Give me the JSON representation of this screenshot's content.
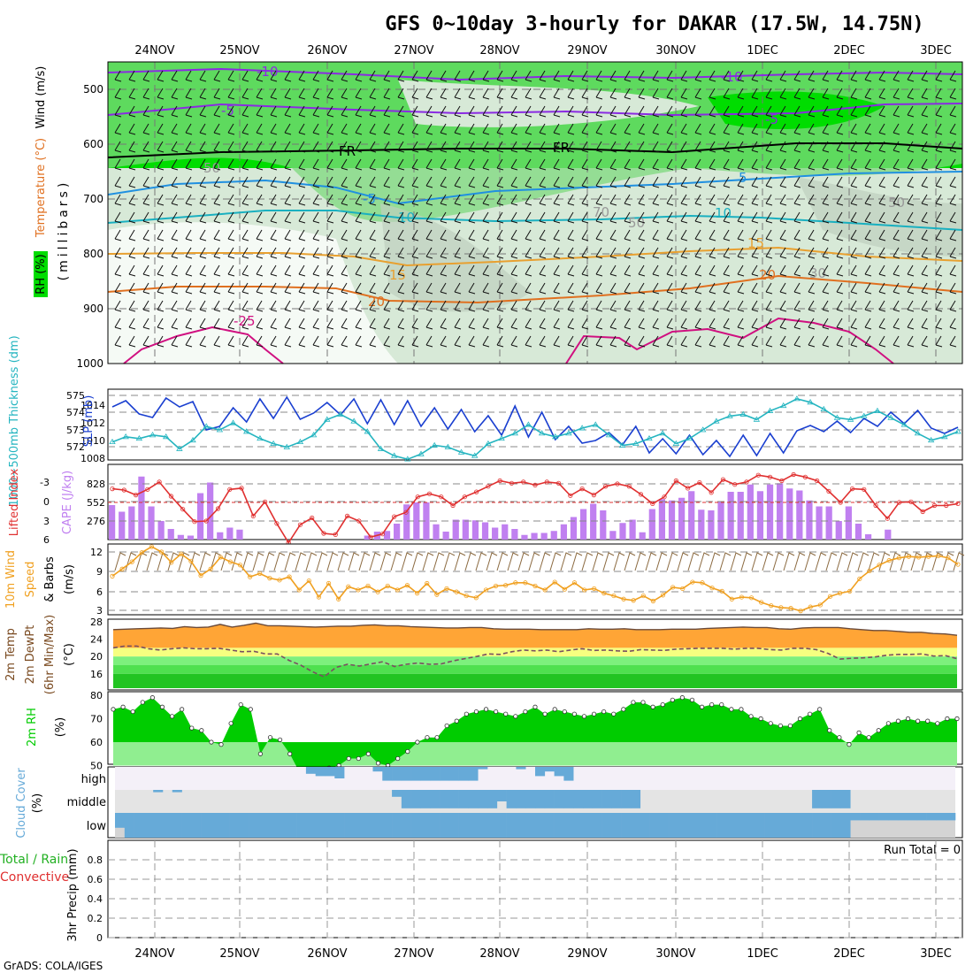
{
  "title": "GFS 0~10day 3-hourly for DAKAR (17.5W, 14.75N)",
  "credit": "GrADS: COLA/IGES",
  "dates": [
    "24NOV",
    "25NOV",
    "26NOV",
    "27NOV",
    "28NOV",
    "29NOV",
    "30NOV",
    "1DEC",
    "2DEC",
    "3DEC"
  ],
  "colors": {
    "rh_green": "#00dd00",
    "rh_mid": "#7ed87e",
    "rh_light": "#d7e9d7",
    "wind_label": "#000000",
    "temp_label": "#e07020",
    "temp_label2": "#7a30b0",
    "slp": "#1a3fd0",
    "thick": "#25b5c0",
    "cape": "#c080f0",
    "li": "#e03030",
    "wspd": "#f0a020",
    "barb": "#8b6a40",
    "t2m": "#ffa536",
    "dewpt": "#7a5060",
    "rh2m": "#00cc00",
    "cloud": "#66aad8"
  },
  "chart_data": [
    {
      "type": "heatmap",
      "panel": "upper-air",
      "ylabel": "(millibars)",
      "label_rh": "RH (%)",
      "label_temp": "Temperature (°C)",
      "label_wind": "Wind (m/s)",
      "y_ticks": [
        500,
        600,
        700,
        800,
        900,
        1000
      ],
      "contour_labels": [
        "-10",
        "-10",
        "-5",
        "-5",
        "FR",
        "FR",
        "-5",
        "5",
        "10",
        "10",
        "15",
        "15",
        "20",
        "20",
        "-25",
        "50",
        "50",
        "50",
        "70",
        "30"
      ]
    },
    {
      "type": "line",
      "panel": "slp-thickness",
      "ylabel_left": "1000~500mb Thickness (dm)",
      "ylabel_right": "SLP (mb)",
      "left_ticks": [
        "575",
        "574",
        "573",
        "572"
      ],
      "right_ticks": [
        "1014",
        "1012",
        "1010",
        "1008"
      ],
      "series": [
        {
          "name": "SLP (mb)",
          "values": [
            1013.8,
            1014.5,
            1013,
            1012.6,
            1014.8,
            1013.8,
            1014.4,
            1011.2,
            1011.6,
            1013.7,
            1012.1,
            1014.7,
            1012.5,
            1014.9,
            1012.4,
            1013.1,
            1014.3,
            1012.9,
            1014.7,
            1011.9,
            1014.6,
            1011.8,
            1014.5,
            1011.6,
            1013.7,
            1011.3,
            1013.5,
            1011,
            1012.8,
            1010.6,
            1013.9,
            1010.4,
            1013.2,
            1010.1,
            1011.6,
            1009.7,
            1010,
            1010.9,
            1009.5,
            1011.6,
            1008.6,
            1010.2,
            1008.5,
            1010.6,
            1008.4,
            1010,
            1008.2,
            1010.6,
            1008.3,
            1010.8,
            1008.6,
            1011.1,
            1011.7,
            1011,
            1012.2,
            1010.9,
            1012.5,
            1011.6,
            1013.2,
            1011.9,
            1013.4,
            1011.4,
            1010.8,
            1011.5
          ]
        },
        {
          "name": "1000~500mb Thickness (dm)",
          "values": [
            572.3,
            572.6,
            572.5,
            572.7,
            572.6,
            571.9,
            572.4,
            573.2,
            573,
            573.4,
            572.9,
            572.5,
            572.2,
            572,
            572.3,
            572.7,
            573.6,
            573.9,
            573.5,
            572.9,
            571.9,
            571.5,
            571.3,
            571.6,
            572.1,
            572,
            571.7,
            571.5,
            572.2,
            572.5,
            572.8,
            573.3,
            572.8,
            572.6,
            572.8,
            573.1,
            573.3,
            572.7,
            572.1,
            572.2,
            572.5,
            572.8,
            572.2,
            572.5,
            573,
            573.5,
            573.8,
            573.9,
            573.6,
            574.1,
            574.4,
            574.8,
            574.6,
            574.2,
            573.7,
            573.6,
            573.8,
            574.1,
            573.7,
            573.3,
            572.8,
            572.4,
            572.6,
            572.9
          ]
        }
      ]
    },
    {
      "type": "bar",
      "panel": "cape-li",
      "ylabel_left": "Lifted Index",
      "ylabel_right": "CAPE (J/kg)",
      "left_ticks": [
        "-3",
        "0",
        "3",
        "6"
      ],
      "right_ticks": [
        "828",
        "552",
        "276"
      ],
      "series": [
        {
          "name": "CAPE (J/kg)",
          "values": [
            520,
            420,
            500,
            950,
            500,
            280,
            160,
            70,
            60,
            700,
            860,
            110,
            180,
            150,
            0,
            0,
            0,
            0,
            0,
            0,
            0,
            0,
            0,
            0,
            0,
            0,
            60,
            120,
            130,
            240,
            530,
            560,
            560,
            230,
            120,
            300,
            300,
            290,
            260,
            180,
            230,
            160,
            70,
            100,
            100,
            130,
            230,
            340,
            460,
            540,
            440,
            130,
            250,
            300,
            110,
            460,
            610,
            590,
            630,
            730,
            450,
            440,
            580,
            720,
            720,
            830,
            730,
            830,
            850,
            770,
            740,
            590,
            500,
            500,
            280,
            500,
            240,
            80,
            0,
            150,
            0,
            0,
            0,
            0,
            0,
            0,
            0
          ]
        },
        {
          "name": "Lifted Index",
          "values": [
            -2.2,
            -2,
            -1.2,
            -2.1,
            -3.3,
            -1,
            1.1,
            3.1,
            3,
            1,
            -2.1,
            -2.3,
            2.2,
            -0.1,
            3.4,
            6.5,
            3.6,
            2.5,
            5,
            5.2,
            2.2,
            3,
            5.6,
            5.1,
            2.3,
            1.6,
            -0.9,
            -1.4,
            -0.9,
            0.5,
            -0.9,
            -1.7,
            -2.6,
            -3.5,
            -3.1,
            -3.3,
            -2.8,
            -3.3,
            -3.1,
            -1.1,
            -2.2,
            -1.2,
            -2.6,
            -3,
            -2.6,
            -1.3,
            0.2,
            -0.9,
            -3.5,
            -2.3,
            -3.2,
            -1.6,
            -3.7,
            -2.9,
            -3.3,
            -4.4,
            -4.1,
            -3.5,
            -4.5,
            -4.1,
            -3.5,
            -1.8,
            0,
            -2.2,
            -2.1,
            0.5,
            2.6,
            0,
            -0.1,
            1.5,
            0.5,
            0.5,
            0.2
          ]
        }
      ]
    },
    {
      "type": "line",
      "panel": "wind10m",
      "ylabel_a": "10m Wind",
      "ylabel_b": "Speed",
      "ylabel_c": "& Barbs",
      "ylabel_unit": "(m/s)",
      "y_ticks": [
        "12",
        "9",
        "6",
        "3"
      ],
      "series": [
        {
          "name": "10m Wind Speed",
          "values": [
            8.3,
            9.4,
            10.5,
            11.9,
            12.8,
            12,
            10.4,
            11.7,
            10.6,
            8.4,
            9.4,
            11.2,
            10.5,
            10,
            8.2,
            8.7,
            8,
            7.7,
            8.2,
            6.2,
            7.6,
            5.1,
            7.2,
            4.8,
            6.7,
            6.2,
            6.8,
            5.9,
            6.8,
            6.2,
            6.9,
            5.7,
            7.2,
            5.5,
            6.4,
            5.9,
            5.3,
            5,
            6.2,
            6.8,
            6.9,
            7.3,
            7.3,
            6.8,
            6.2,
            7.4,
            6.3,
            7.3,
            6.2,
            6.4,
            5.7,
            5.3,
            4.8,
            4.6,
            5.3,
            4.5,
            5.4,
            6.6,
            6.4,
            7.4,
            7.3,
            6.5,
            6,
            4.8,
            5.1,
            5,
            4.3,
            3.8,
            3.5,
            3.4,
            3,
            3.6,
            3.9,
            5.2,
            5.7,
            6,
            7.9,
            9.1,
            10,
            10.7,
            11.1,
            11.3,
            11.2,
            11.3,
            11.4,
            11.1,
            10.1
          ]
        }
      ]
    },
    {
      "type": "area",
      "panel": "temp2m",
      "ylabel_a": "2m Temp",
      "ylabel_b": "2m DewPt",
      "ylabel_c": "(6hr Min/Max)",
      "ylabel_unit": "(°C)",
      "y_ticks": [
        "28",
        "24",
        "20",
        "16"
      ],
      "series": [
        {
          "name": "2m Temp",
          "values": [
            26.2,
            26.3,
            26.4,
            26.5,
            26.6,
            26.5,
            26.9,
            26.7,
            26.8,
            27.4,
            26.8,
            27.2,
            27.7,
            27.1,
            27.1,
            27,
            26.9,
            26.8,
            26.9,
            27,
            27,
            27.2,
            27.3,
            27.1,
            27.1,
            26.9,
            26.8,
            26.7,
            26.6,
            26.6,
            26.7,
            26.7,
            26.4,
            26.3,
            26.3,
            26.3,
            26.2,
            26.2,
            26.2,
            26.2,
            26.4,
            26.3,
            26.3,
            26.4,
            26.2,
            26.2,
            26.2,
            26.3,
            26.3,
            26.3,
            26.5,
            26.6,
            26.7,
            26.8,
            26.7,
            26.7,
            26.4,
            26.3,
            26.6,
            26.7,
            26.7,
            26.7,
            26.4,
            26.2,
            26,
            26,
            25.8,
            25.6,
            25.6,
            25.3,
            25.2,
            24.9
          ]
        },
        {
          "name": "2m DewPt",
          "values": [
            22,
            22.4,
            22.4,
            21.8,
            21.5,
            21.8,
            22,
            21.8,
            21.8,
            21.9,
            21.5,
            21.1,
            21.2,
            20.6,
            20.6,
            19.1,
            18,
            16.5,
            15.3,
            17.5,
            18.2,
            17.8,
            18.3,
            18.8,
            17.7,
            18.2,
            18.5,
            18.2,
            18.3,
            19,
            19.5,
            20,
            20.6,
            20.5,
            21.1,
            21.5,
            21.3,
            21.5,
            21.1,
            21.5,
            21.8,
            21.4,
            21.5,
            21.3,
            21.2,
            21.6,
            21.5,
            21.4,
            21.7,
            21.8,
            21.9,
            21.9,
            21.9,
            21.7,
            21.9,
            21.9,
            21.6,
            21.5,
            21.9,
            21.9,
            21.6,
            20.7,
            19.4,
            19.6,
            19.7,
            19.9,
            20.3,
            20.5,
            20.5,
            20.6,
            20.1,
            20.2,
            19.5
          ]
        }
      ]
    },
    {
      "type": "area",
      "panel": "rh2m",
      "ylabel": "2m RH",
      "ylabel_unit": "(%)",
      "y_ticks": [
        "80",
        "70",
        "60",
        "50"
      ],
      "series": [
        {
          "name": "2m RH",
          "values": [
            74,
            75,
            73,
            77,
            79,
            75,
            71,
            74,
            66,
            65,
            60,
            59,
            68,
            76,
            74,
            55,
            62,
            61,
            55,
            47,
            42,
            45,
            49,
            50,
            53,
            53,
            55,
            51,
            50,
            53,
            56,
            60,
            62,
            62,
            67,
            69,
            72,
            73,
            74,
            73,
            72,
            71,
            73,
            75,
            72,
            74,
            73,
            72,
            71,
            72,
            73,
            72,
            74,
            77,
            77,
            75,
            76,
            78,
            79,
            78,
            75,
            76,
            76,
            74,
            74,
            71,
            70,
            68,
            67,
            67,
            70,
            72,
            74,
            65,
            62,
            59,
            64,
            62,
            65,
            68,
            69,
            70,
            69,
            69,
            68,
            70,
            70
          ]
        }
      ]
    },
    {
      "type": "area",
      "panel": "cloud-cover",
      "ylabel": "Cloud Cover",
      "ylabel_unit": "(%)",
      "levels": [
        "high",
        "middle",
        "low"
      ],
      "series": [
        {
          "name": "high",
          "values": [
            0,
            0,
            0,
            0,
            0,
            0,
            0,
            0,
            0,
            0,
            0,
            0,
            0,
            0,
            0,
            0,
            0,
            0,
            0,
            0,
            30,
            40,
            40,
            50,
            0,
            0,
            0,
            20,
            60,
            60,
            60,
            60,
            60,
            60,
            60,
            60,
            60,
            60,
            10,
            0,
            0,
            0,
            10,
            0,
            40,
            20,
            40,
            60,
            0,
            0,
            0,
            0,
            0,
            0,
            0,
            0,
            0,
            0,
            0,
            0,
            0,
            0,
            0,
            0,
            0,
            0,
            0,
            0,
            0,
            0,
            0,
            0,
            0,
            0,
            0,
            0,
            0,
            0,
            0,
            0,
            0,
            0,
            0,
            0,
            0,
            0,
            0,
            0
          ]
        },
        {
          "name": "middle",
          "values": [
            0,
            0,
            0,
            0,
            10,
            0,
            10,
            0,
            0,
            0,
            0,
            0,
            0,
            0,
            0,
            0,
            0,
            0,
            0,
            0,
            0,
            0,
            0,
            0,
            0,
            0,
            0,
            0,
            0,
            30,
            80,
            80,
            80,
            80,
            80,
            80,
            80,
            80,
            80,
            80,
            50,
            80,
            80,
            80,
            80,
            80,
            80,
            80,
            80,
            80,
            80,
            80,
            80,
            80,
            80,
            0,
            0,
            0,
            0,
            0,
            0,
            0,
            0,
            0,
            0,
            0,
            0,
            0,
            0,
            0,
            0,
            0,
            0,
            80,
            80,
            80,
            80,
            0,
            0,
            0,
            0,
            0,
            0,
            0,
            0,
            0,
            0,
            0
          ]
        },
        {
          "name": "low",
          "values": [
            60,
            100,
            100,
            100,
            100,
            100,
            100,
            100,
            100,
            100,
            100,
            100,
            100,
            100,
            100,
            100,
            100,
            100,
            100,
            100,
            100,
            100,
            100,
            100,
            100,
            100,
            100,
            100,
            100,
            100,
            100,
            100,
            100,
            100,
            100,
            100,
            100,
            100,
            100,
            100,
            100,
            100,
            100,
            100,
            100,
            100,
            100,
            100,
            100,
            100,
            100,
            100,
            100,
            100,
            100,
            100,
            100,
            100,
            100,
            100,
            100,
            100,
            100,
            100,
            100,
            100,
            100,
            100,
            100,
            100,
            100,
            100,
            100,
            100,
            100,
            100,
            100,
            30,
            30,
            30,
            30,
            30,
            30,
            30,
            30,
            30,
            30,
            30
          ]
        }
      ]
    },
    {
      "type": "bar",
      "panel": "precip",
      "ylabel_a": "Total / Rain",
      "ylabel_b": "Convective",
      "ylabel_c": "3hr Precip (mm)",
      "run_total": "Run Total = 0",
      "y_ticks": [
        "0.8",
        "0.6",
        "0.4",
        "0.2",
        "0"
      ],
      "series": [
        {
          "name": "3hr Precip (mm)",
          "values": []
        }
      ]
    }
  ]
}
